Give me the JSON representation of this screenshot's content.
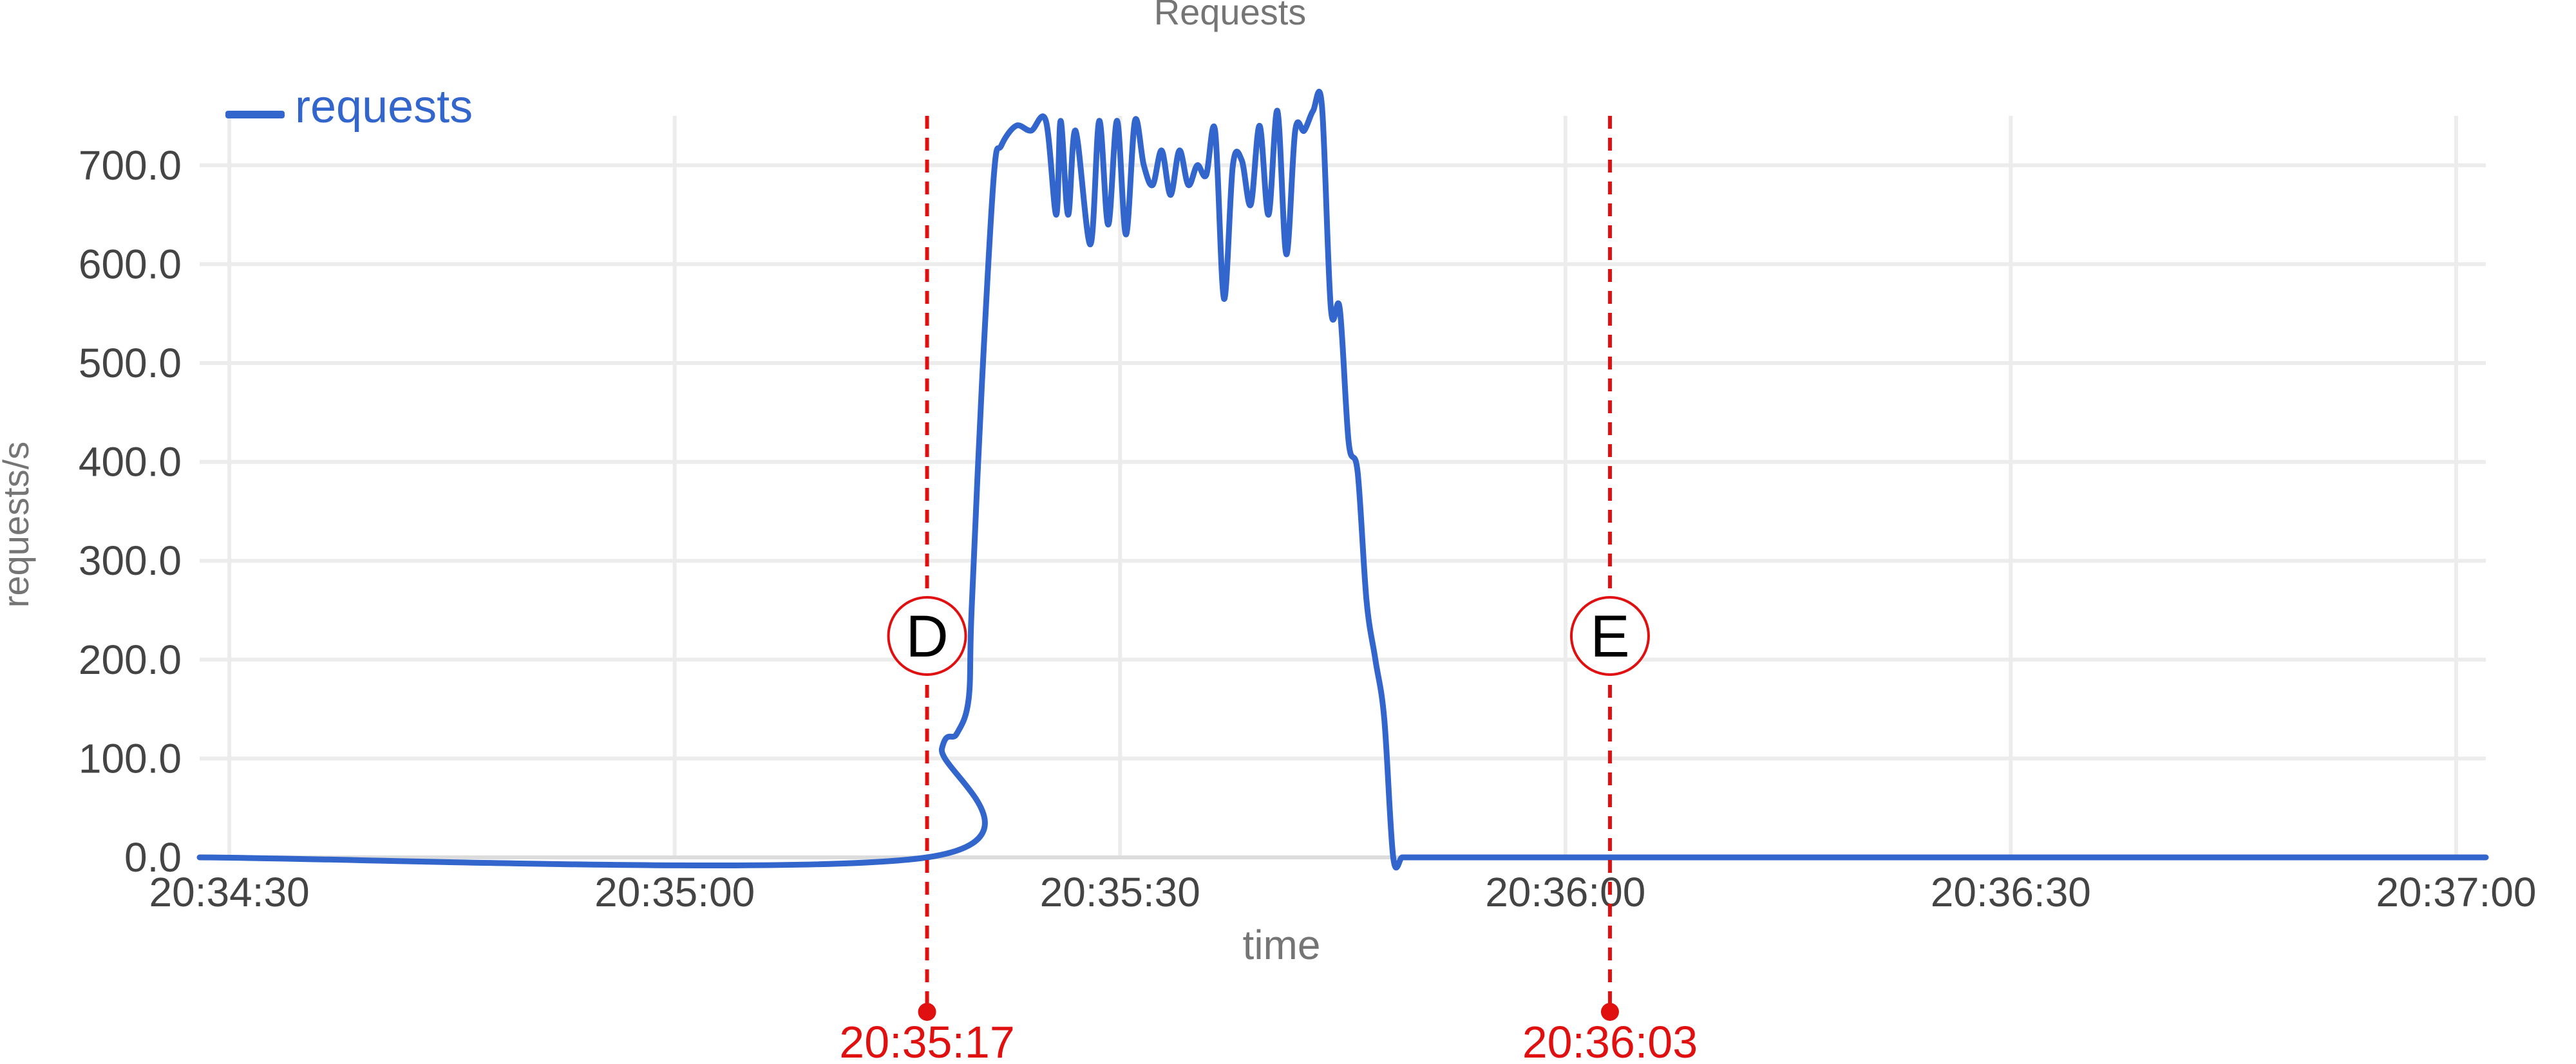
{
  "chart_data": {
    "type": "line",
    "title": "Requests",
    "xlabel": "time",
    "ylabel": "requests/s",
    "x_ticks": [
      "20:34:30",
      "20:35:00",
      "20:35:30",
      "20:36:00",
      "20:36:30",
      "20:37:00"
    ],
    "x_range_seconds": [
      -2,
      152
    ],
    "x_tick_seconds": [
      0,
      30,
      60,
      90,
      120,
      150
    ],
    "y_ticks": [
      "0.0",
      "100.0",
      "200.0",
      "300.0",
      "400.0",
      "500.0",
      "600.0",
      "700.0"
    ],
    "ylim": [
      0,
      750
    ],
    "grid": true,
    "legend": {
      "position": "top-left",
      "entries": [
        {
          "name": "requests",
          "color": "#3366cc"
        }
      ]
    },
    "series": [
      {
        "name": "requests",
        "color": "#3366cc",
        "x_seconds": [
          -2,
          47,
          48,
          49,
          49.8,
          50,
          50.7,
          51.5,
          52,
          53,
          54,
          55,
          55.7,
          56,
          56.5,
          57,
          58,
          58.6,
          59.2,
          59.8,
          60.4,
          61,
          61.6,
          62.2,
          62.8,
          63.4,
          64,
          64.6,
          65.2,
          65.8,
          66.4,
          67,
          67.6,
          68.2,
          68.8,
          69.4,
          70,
          70.6,
          71.2,
          71.8,
          72.4,
          73,
          73.6,
          74.2,
          74.8,
          75.4,
          76,
          76.6,
          77.2,
          77.8,
          78.4,
          79,
          79.6,
          80.2,
          80.8,
          81.4,
          82,
          82.6,
          83.2,
          83.8,
          84.4,
          85,
          85.6,
          86.2,
          86.6,
          87,
          87.3,
          87.6,
          88,
          88.5,
          89,
          89.4,
          89.8,
          90.3,
          90.8,
          91.2,
          91.8,
          92,
          152
        ],
        "y": [
          0,
          0,
          110,
          125,
          160,
          250,
          480,
          690,
          720,
          740,
          735,
          745,
          650,
          745,
          650,
          735,
          620,
          745,
          640,
          745,
          630,
          745,
          700,
          680,
          715,
          670,
          715,
          680,
          700,
          690,
          735,
          565,
          700,
          705,
          660,
          740,
          650,
          755,
          610,
          735,
          735,
          755,
          760,
          555,
          555,
          420,
          390,
          260,
          200,
          140,
          0,
          0,
          0,
          0,
          0,
          0,
          0,
          0,
          0,
          0,
          0,
          0,
          0,
          0,
          0,
          0,
          0,
          0,
          0,
          0,
          0,
          0,
          0,
          0,
          0,
          0,
          0,
          0,
          0
        ]
      }
    ],
    "annotations": [
      {
        "label": "D",
        "time": "20:35:17",
        "x_seconds": 47,
        "color": "#e01010"
      },
      {
        "label": "E",
        "time": "20:36:03",
        "x_seconds": 93,
        "color": "#e01010"
      }
    ]
  }
}
